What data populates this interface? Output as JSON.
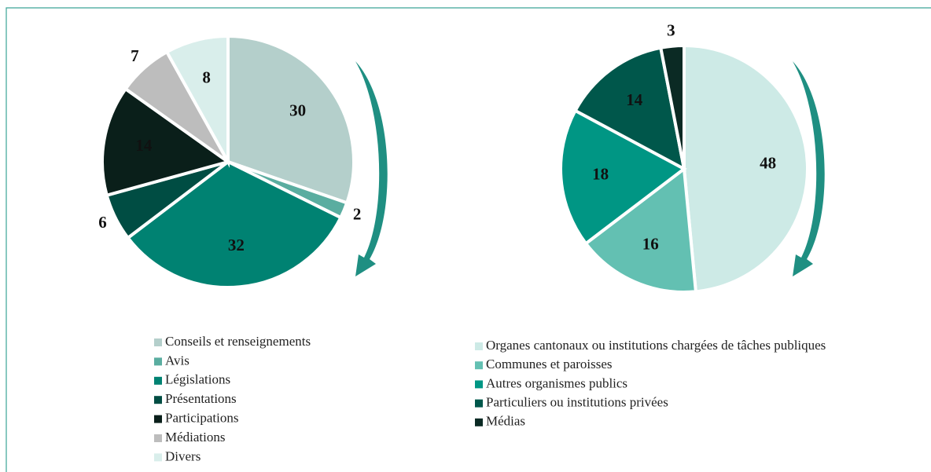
{
  "chart_data": [
    {
      "type": "pie",
      "categories": [
        "Conseils et renseignements",
        "Avis",
        "Législations",
        "Présentations",
        "Participations",
        "Médiations",
        "Divers"
      ],
      "values": [
        30,
        2,
        32,
        6,
        14,
        7,
        8
      ],
      "colors": [
        "#b4cfcb",
        "#5aada0",
        "#008272",
        "#004d43",
        "#0a1f1a",
        "#bdbdbd",
        "#d9eeeb"
      ]
    },
    {
      "type": "pie",
      "categories": [
        "Organes cantonaux ou institutions chargées de tâches publiques",
        "Communes et paroisses",
        "Autres organismes publics",
        "Particuliers ou institutions privées",
        "Médias"
      ],
      "values": [
        48,
        16,
        18,
        14,
        3
      ],
      "colors": [
        "#cdeae6",
        "#63c0b2",
        "#009684",
        "#00574b",
        "#0b2a24"
      ]
    }
  ]
}
